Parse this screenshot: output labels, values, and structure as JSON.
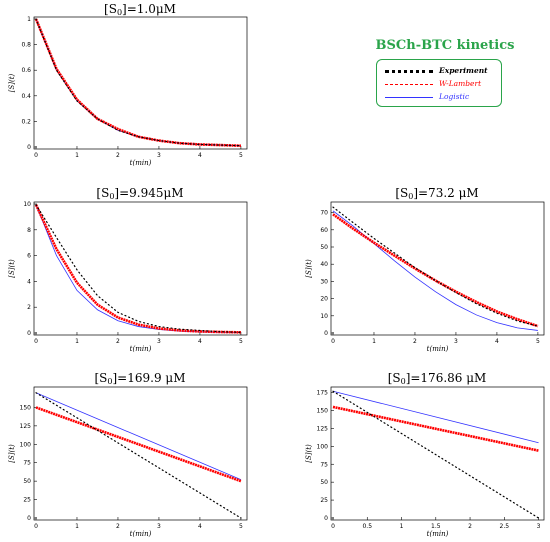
{
  "legend": {
    "title": "BSCh-BTC kinetics",
    "entries": [
      {
        "label": "Experiment",
        "color": "#000000",
        "style": "dotted-heavy"
      },
      {
        "label": "W-Lambert",
        "color": "#ff0000",
        "style": "dashed"
      },
      {
        "label": "Logistic",
        "color": "#3333ff",
        "style": "solid"
      }
    ]
  },
  "chart_data": [
    {
      "type": "line",
      "title_pre": "[S",
      "title_sub": "0",
      "title_post": "]=1.0μM",
      "xlabel": "t(min)",
      "ylabel": "[S](t)",
      "xlim": [
        0,
        5.1
      ],
      "ylim": [
        0,
        1.0
      ],
      "xticks": [
        "0",
        "1",
        "2",
        "3",
        "4",
        "5"
      ],
      "xtick_values": [
        0,
        1,
        2,
        3,
        4,
        5
      ],
      "yticks": [
        "0",
        "0.2",
        "0.4",
        "0.6",
        "0.8",
        "1"
      ],
      "ytick_values": [
        0,
        0.2,
        0.4,
        0.6,
        0.8,
        1.0
      ],
      "series": [
        {
          "name": "Experiment",
          "color": "#000000",
          "x": [
            0,
            0.5,
            1,
            1.5,
            2,
            2.5,
            3,
            3.5,
            4,
            4.5,
            5
          ],
          "y": [
            1.0,
            0.6,
            0.36,
            0.22,
            0.13,
            0.08,
            0.05,
            0.03,
            0.02,
            0.015,
            0.01
          ]
        },
        {
          "name": "W-Lambert",
          "color": "#ff0000",
          "x": [
            0,
            0.5,
            1,
            1.5,
            2,
            2.5,
            3,
            3.5,
            4,
            4.5,
            5
          ],
          "y": [
            1.0,
            0.61,
            0.37,
            0.22,
            0.14,
            0.08,
            0.05,
            0.03,
            0.02,
            0.015,
            0.01
          ]
        },
        {
          "name": "Logistic",
          "color": "#3333ff",
          "x": [
            0,
            0.5,
            1,
            1.5,
            2,
            2.5,
            3,
            3.5,
            4,
            4.5,
            5
          ],
          "y": [
            1.0,
            0.6,
            0.36,
            0.22,
            0.13,
            0.08,
            0.05,
            0.03,
            0.02,
            0.015,
            0.01
          ]
        }
      ]
    },
    {
      "type": "line",
      "title_pre": "[S",
      "title_sub": "0",
      "title_post": "]=9.945μM",
      "xlabel": "t(min)",
      "ylabel": "[S](t)",
      "xlim": [
        0,
        5.1
      ],
      "ylim": [
        0,
        10
      ],
      "xticks": [
        "0",
        "1",
        "2",
        "3",
        "4",
        "5"
      ],
      "xtick_values": [
        0,
        1,
        2,
        3,
        4,
        5
      ],
      "yticks": [
        "0",
        "2",
        "4",
        "6",
        "8",
        "10"
      ],
      "ytick_values": [
        0,
        2,
        4,
        6,
        8,
        10
      ],
      "series": [
        {
          "name": "Experiment",
          "color": "#000000",
          "x": [
            0,
            0.5,
            1,
            1.5,
            2,
            2.5,
            3,
            3.5,
            4,
            4.5,
            5
          ],
          "y": [
            9.945,
            7.4,
            4.9,
            2.9,
            1.6,
            0.9,
            0.5,
            0.3,
            0.2,
            0.1,
            0.05
          ]
        },
        {
          "name": "W-Lambert",
          "color": "#ff0000",
          "x": [
            0,
            0.5,
            1,
            1.5,
            2,
            2.5,
            3,
            3.5,
            4,
            4.5,
            5
          ],
          "y": [
            9.945,
            6.5,
            3.9,
            2.2,
            1.2,
            0.65,
            0.35,
            0.2,
            0.12,
            0.08,
            0.05
          ]
        },
        {
          "name": "Logistic",
          "color": "#3333ff",
          "x": [
            0,
            0.5,
            1,
            1.5,
            2,
            2.5,
            3,
            3.5,
            4,
            4.5,
            5
          ],
          "y": [
            9.945,
            6.0,
            3.3,
            1.8,
            0.95,
            0.5,
            0.27,
            0.15,
            0.09,
            0.06,
            0.04
          ]
        }
      ]
    },
    {
      "type": "line",
      "title_pre": "[S",
      "title_sub": "0",
      "title_post": "]=73.2 μM",
      "xlabel": "t(min)",
      "ylabel": "[S](t)",
      "xlim": [
        0,
        5.1
      ],
      "ylim": [
        0,
        75
      ],
      "xticks": [
        "0",
        "1",
        "2",
        "3",
        "4",
        "5"
      ],
      "xtick_values": [
        0,
        1,
        2,
        3,
        4,
        5
      ],
      "yticks": [
        "0",
        "10",
        "20",
        "30",
        "40",
        "50",
        "60",
        "70"
      ],
      "ytick_values": [
        0,
        10,
        20,
        30,
        40,
        50,
        60,
        70
      ],
      "series": [
        {
          "name": "Experiment",
          "color": "#000000",
          "x": [
            0,
            0.5,
            1,
            1.5,
            2,
            2.5,
            3,
            3.5,
            4,
            4.5,
            5
          ],
          "y": [
            73.2,
            64,
            55,
            46.5,
            38,
            30.5,
            23.5,
            17,
            11.5,
            7,
            4
          ]
        },
        {
          "name": "W-Lambert",
          "color": "#ff0000",
          "x": [
            0,
            0.5,
            1,
            1.5,
            2,
            2.5,
            3,
            3.5,
            4,
            4.5,
            5
          ],
          "y": [
            69,
            60.5,
            52.5,
            45,
            37.5,
            30.5,
            24,
            18,
            12.5,
            8,
            4
          ]
        },
        {
          "name": "Logistic",
          "color": "#3333ff",
          "x": [
            0,
            0.5,
            1,
            1.5,
            2,
            2.5,
            3,
            3.5,
            4,
            4.5,
            5
          ],
          "y": [
            71,
            62,
            52,
            42,
            32.5,
            24,
            16.5,
            10.5,
            6,
            3,
            1.5
          ]
        }
      ]
    },
    {
      "type": "line",
      "title_pre": "[S",
      "title_sub": "0",
      "title_post": "]=169.9 μM",
      "xlabel": "t(min)",
      "ylabel": "[S](t)",
      "xlim": [
        0,
        5.1
      ],
      "ylim": [
        0,
        175
      ],
      "xticks": [
        "0",
        "1",
        "2",
        "3",
        "4",
        "5"
      ],
      "xtick_values": [
        0,
        1,
        2,
        3,
        4,
        5
      ],
      "yticks": [
        "0",
        "25",
        "50",
        "75",
        "100",
        "125",
        "150"
      ],
      "ytick_values": [
        0,
        25,
        50,
        75,
        100,
        125,
        150
      ],
      "series": [
        {
          "name": "Experiment",
          "color": "#000000",
          "x": [
            0,
            5
          ],
          "y": [
            169.9,
            0
          ]
        },
        {
          "name": "W-Lambert",
          "color": "#ff0000",
          "x": [
            0,
            5
          ],
          "y": [
            150,
            50
          ]
        },
        {
          "name": "Logistic",
          "color": "#3333ff",
          "x": [
            0,
            5
          ],
          "y": [
            169.9,
            52
          ]
        }
      ]
    },
    {
      "type": "line",
      "title_pre": "[S",
      "title_sub": "0",
      "title_post": "]=176.86 μM",
      "xlabel": "t(min)",
      "ylabel": "[S](t)",
      "xlim": [
        0,
        3.05
      ],
      "ylim": [
        0,
        180
      ],
      "xticks": [
        "0",
        "0.5",
        "1",
        "1.5",
        "2",
        "2.5",
        "3"
      ],
      "xtick_values": [
        0,
        0.5,
        1,
        1.5,
        2,
        2.5,
        3
      ],
      "yticks": [
        "0",
        "25",
        "50",
        "75",
        "100",
        "125",
        "150",
        "175"
      ],
      "ytick_values": [
        0,
        25,
        50,
        75,
        100,
        125,
        150,
        175
      ],
      "series": [
        {
          "name": "Experiment",
          "color": "#000000",
          "x": [
            0,
            3
          ],
          "y": [
            176.86,
            0
          ]
        },
        {
          "name": "W-Lambert",
          "color": "#ff0000",
          "x": [
            0,
            3
          ],
          "y": [
            155,
            94
          ]
        },
        {
          "name": "Logistic",
          "color": "#3333ff",
          "x": [
            0,
            3
          ],
          "y": [
            176.86,
            105
          ]
        }
      ]
    }
  ]
}
